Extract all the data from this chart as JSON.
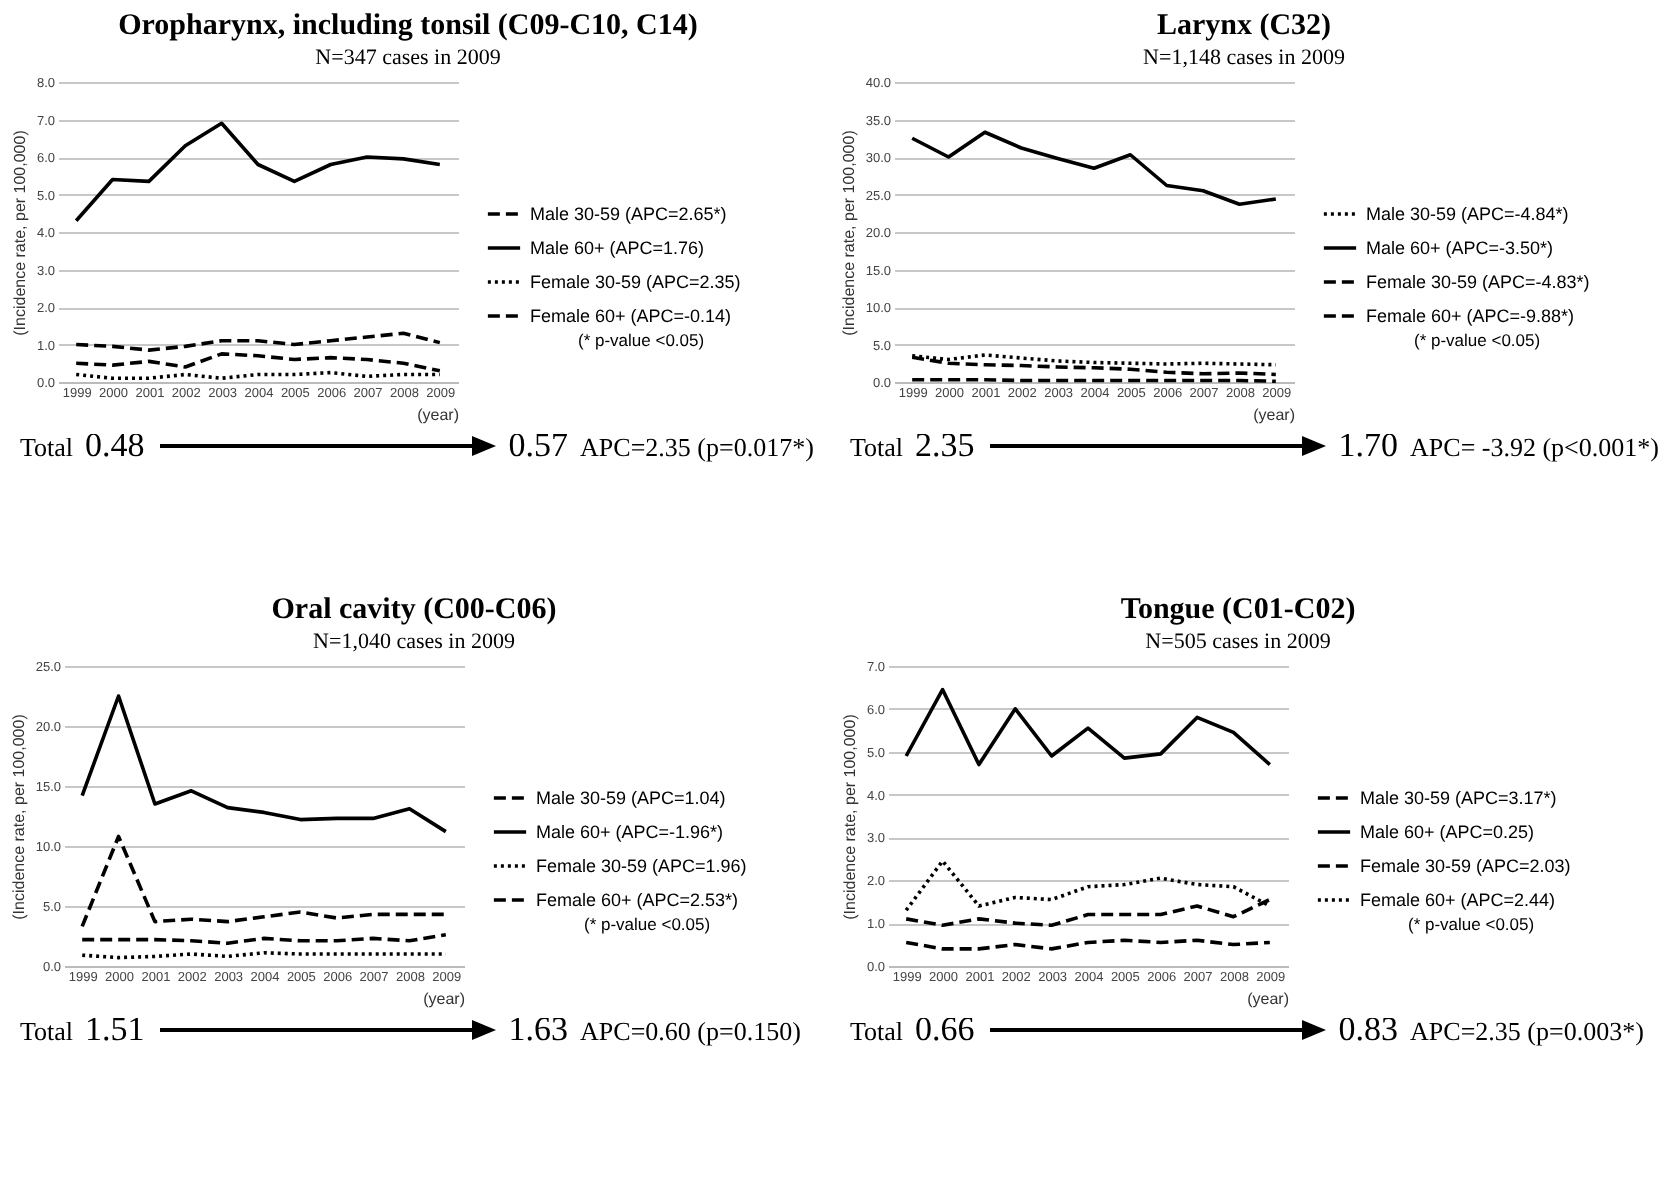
{
  "chart_data": [
    {
      "type": "line",
      "title": "Oropharynx, including tonsil (C09-C10, C14)",
      "subtitle": "N=347 cases in 2009",
      "xlabel": "(year)",
      "ylabel": "(Incidence rate, per 100,000)",
      "categories": [
        "1999",
        "2000",
        "2001",
        "2002",
        "2003",
        "2004",
        "2005",
        "2006",
        "2007",
        "2008",
        "2009"
      ],
      "series": [
        {
          "name": "Male 30-59 (APC=2.65*)",
          "color": "#000000",
          "line_style": "dashed",
          "values": [
            1.0,
            0.95,
            0.85,
            0.95,
            1.1,
            1.1,
            1.0,
            1.1,
            1.2,
            1.3,
            1.05
          ]
        },
        {
          "name": "Male 60+ (APC=1.76)",
          "color": "#000000",
          "line_style": "solid",
          "values": [
            4.3,
            5.4,
            5.35,
            6.3,
            6.9,
            5.8,
            5.35,
            5.8,
            6.0,
            5.95,
            5.8
          ]
        },
        {
          "name": "Female 30-59 (APC=2.35)",
          "color": "#000000",
          "line_style": "dotted",
          "values": [
            0.2,
            0.1,
            0.1,
            0.2,
            0.1,
            0.2,
            0.2,
            0.25,
            0.15,
            0.2,
            0.2
          ]
        },
        {
          "name": "Female 60+ (APC=-0.14)",
          "color": "#000000",
          "line_style": "dashed",
          "values": [
            0.5,
            0.45,
            0.55,
            0.4,
            0.75,
            0.7,
            0.6,
            0.65,
            0.6,
            0.5,
            0.3
          ]
        }
      ],
      "ylim": [
        0,
        8
      ],
      "yticks": [
        {
          "value": 0,
          "label": "0.0"
        },
        {
          "value": 1,
          "label": "1.0"
        },
        {
          "value": 2,
          "label": "2.0"
        },
        {
          "value": 3,
          "label": "3.0"
        },
        {
          "value": 4,
          "label": "4.0"
        },
        {
          "value": 5,
          "label": "5.0"
        },
        {
          "value": 6,
          "label": "6.0"
        },
        {
          "value": 7,
          "label": "7.0"
        },
        {
          "value": 8,
          "label": "8.0"
        }
      ],
      "grid": "y",
      "legend": "right",
      "annotations": [
        "(* p-value <0.05)",
        "Total",
        "0.48",
        "0.57",
        "APC=2.35 (p=0.017*)"
      ]
    },
    {
      "type": "line",
      "title": "Larynx (C32)",
      "subtitle": "N=1,148 cases in 2009",
      "xlabel": "(year)",
      "ylabel": "(Incidence rate, per 100,000)",
      "categories": [
        "1999",
        "2000",
        "2001",
        "2002",
        "2003",
        "2004",
        "2005",
        "2006",
        "2007",
        "2008",
        "2009"
      ],
      "series": [
        {
          "name": "Male 30-59 (APC=-4.84*)",
          "color": "#000000",
          "line_style": "dotted",
          "values": [
            3.5,
            3.0,
            3.6,
            3.2,
            2.8,
            2.6,
            2.5,
            2.4,
            2.5,
            2.4,
            2.3
          ]
        },
        {
          "name": "Male 60+ (APC=-3.50*)",
          "color": "#000000",
          "line_style": "solid",
          "values": [
            32.5,
            30,
            33.3,
            31.2,
            29.8,
            28.5,
            30.3,
            26.2,
            25.5,
            23.7,
            24.4
          ]
        },
        {
          "name": "Female 30-59 (APC=-4.83*)",
          "color": "#000000",
          "line_style": "dashed",
          "values": [
            0.3,
            0.3,
            0.3,
            0.2,
            0.2,
            0.2,
            0.2,
            0.2,
            0.2,
            0.2,
            0.1
          ]
        },
        {
          "name": "Female 60+ (APC=-9.88*)",
          "color": "#000000",
          "line_style": "dashed",
          "values": [
            3.3,
            2.5,
            2.3,
            2.2,
            2.0,
            1.9,
            1.7,
            1.3,
            1.1,
            1.2,
            1.0
          ]
        }
      ],
      "ylim": [
        0,
        40
      ],
      "yticks": [
        {
          "value": 0,
          "label": "0.0"
        },
        {
          "value": 5,
          "label": "5.0"
        },
        {
          "value": 10,
          "label": "10.0"
        },
        {
          "value": 15,
          "label": "15.0"
        },
        {
          "value": 20,
          "label": "20.0"
        },
        {
          "value": 25,
          "label": "25.0"
        },
        {
          "value": 30,
          "label": "30.0"
        },
        {
          "value": 35,
          "label": "35.0"
        },
        {
          "value": 40,
          "label": "40.0"
        }
      ],
      "grid": "y",
      "legend": "right",
      "annotations": [
        "(* p-value <0.05)",
        "Total",
        "2.35",
        "1.70",
        "APC= -3.92 (p<0.001*)"
      ]
    },
    {
      "type": "line",
      "title": "Oral cavity (C00-C06)",
      "subtitle": "N=1,040 cases in 2009",
      "xlabel": "(year)",
      "ylabel": "(Incidence rate, per 100,000)",
      "categories": [
        "1999",
        "2000",
        "2001",
        "2002",
        "2003",
        "2004",
        "2005",
        "2006",
        "2007",
        "2008",
        "2009"
      ],
      "series": [
        {
          "name": "Male 30-59 (APC=1.04)",
          "color": "#000000",
          "line_style": "dashed",
          "values": [
            2.2,
            2.2,
            2.2,
            2.1,
            1.9,
            2.3,
            2.1,
            2.1,
            2.3,
            2.1,
            2.6
          ]
        },
        {
          "name": "Male 60+ (APC=-1.96*)",
          "color": "#000000",
          "line_style": "solid",
          "values": [
            14.2,
            22.5,
            13.5,
            14.6,
            13.2,
            12.8,
            12.2,
            12.3,
            12.3,
            13.1,
            11.2
          ]
        },
        {
          "name": "Female 30-59 (APC=1.96)",
          "color": "#000000",
          "line_style": "dotted",
          "values": [
            0.9,
            0.7,
            0.8,
            1.0,
            0.8,
            1.1,
            1.0,
            1.0,
            1.0,
            1.0,
            1.0
          ]
        },
        {
          "name": "Female 60+ (APC=2.53*)",
          "color": "#000000",
          "line_style": "dashed",
          "values": [
            3.3,
            10.8,
            3.7,
            3.9,
            3.7,
            4.1,
            4.5,
            4.0,
            4.3,
            4.3,
            4.3
          ]
        }
      ],
      "ylim": [
        0,
        25
      ],
      "yticks": [
        {
          "value": 0,
          "label": "0.0"
        },
        {
          "value": 5,
          "label": "5.0"
        },
        {
          "value": 10,
          "label": "10.0"
        },
        {
          "value": 15,
          "label": "15.0"
        },
        {
          "value": 20,
          "label": "20.0"
        },
        {
          "value": 25,
          "label": "25.0"
        }
      ],
      "grid": "y",
      "legend": "right",
      "annotations": [
        "(* p-value <0.05)",
        "Total",
        "1.51",
        "1.63",
        "APC=0.60 (p=0.150)"
      ]
    },
    {
      "type": "line",
      "title": "Tongue (C01-C02)",
      "subtitle": "N=505 cases in 2009",
      "xlabel": "(year)",
      "ylabel": "(Incidence rate, per 100,000)",
      "categories": [
        "1999",
        "2000",
        "2001",
        "2002",
        "2003",
        "2004",
        "2005",
        "2006",
        "2007",
        "2008",
        "2009"
      ],
      "series": [
        {
          "name": "Male 30-59 (APC=3.17*)",
          "color": "#000000",
          "line_style": "dashed",
          "values": [
            0.55,
            0.4,
            0.4,
            0.5,
            0.4,
            0.55,
            0.6,
            0.55,
            0.6,
            0.5,
            0.55
          ]
        },
        {
          "name": "Male 60+ (APC=0.25)",
          "color": "#000000",
          "line_style": "solid",
          "values": [
            4.9,
            6.45,
            4.7,
            6.0,
            4.9,
            5.55,
            4.85,
            4.95,
            5.8,
            5.45,
            4.7
          ]
        },
        {
          "name": "Female 30-59 (APC=2.03)",
          "color": "#000000",
          "line_style": "dashed",
          "values": [
            1.1,
            0.95,
            1.1,
            1.0,
            0.95,
            1.2,
            1.2,
            1.2,
            1.4,
            1.15,
            1.55
          ]
        },
        {
          "name": "Female 60+ (APC=2.44)",
          "color": "#000000",
          "line_style": "dotted",
          "values": [
            1.3,
            2.45,
            1.4,
            1.6,
            1.55,
            1.85,
            1.9,
            2.05,
            1.9,
            1.85,
            1.4
          ]
        }
      ],
      "ylim": [
        0,
        7
      ],
      "yticks": [
        {
          "value": 0,
          "label": "0.0"
        },
        {
          "value": 1,
          "label": "1.0"
        },
        {
          "value": 2,
          "label": "2.0"
        },
        {
          "value": 3,
          "label": "3.0"
        },
        {
          "value": 4,
          "label": "4.0"
        },
        {
          "value": 5,
          "label": "5.0"
        },
        {
          "value": 6,
          "label": "6.0"
        },
        {
          "value": 7,
          "label": "7.0"
        }
      ],
      "grid": "y",
      "legend": "right",
      "annotations": [
        "(* p-value <0.05)",
        "Total",
        "0.66",
        "0.83",
        "APC=2.35 (p=0.003*)"
      ]
    }
  ]
}
